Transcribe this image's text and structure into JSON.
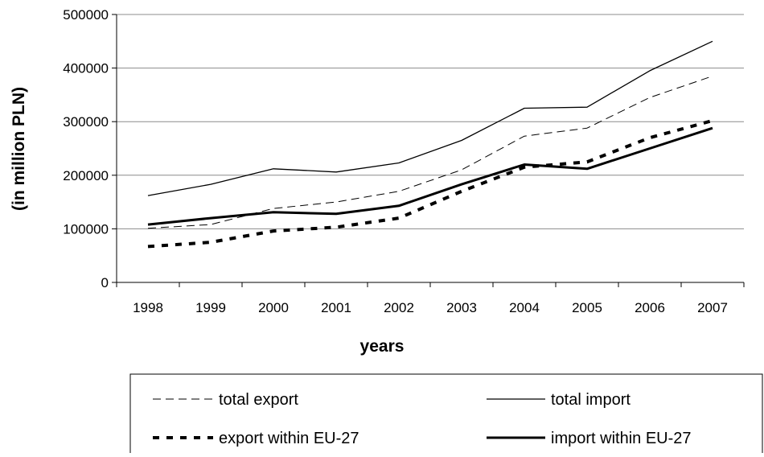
{
  "chart_data": {
    "type": "line",
    "xlabel": "years",
    "ylabel": "(in million PLN)",
    "x": [
      "1998",
      "1999",
      "2000",
      "2001",
      "2002",
      "2003",
      "2004",
      "2005",
      "2006",
      "2007"
    ],
    "ylim": [
      0,
      500000
    ],
    "yticks": [
      "0",
      "100000",
      "200000",
      "300000",
      "400000",
      "500000"
    ],
    "grid": "horizontal",
    "legend_position": "bottom",
    "series": [
      {
        "name": "total export",
        "style": "thin-dashed",
        "color": "#000000",
        "values": [
          101000,
          108000,
          138000,
          150000,
          170000,
          210000,
          273000,
          288000,
          345000,
          385000
        ]
      },
      {
        "name": "total import",
        "style": "thin-solid",
        "color": "#000000",
        "values": [
          162000,
          183000,
          212000,
          206000,
          223000,
          265000,
          325000,
          327000,
          395000,
          450000
        ]
      },
      {
        "name": "export within EU-27",
        "style": "thick-dashed",
        "color": "#000000",
        "values": [
          67000,
          75000,
          96000,
          103000,
          120000,
          170000,
          215000,
          225000,
          270000,
          302000
        ]
      },
      {
        "name": "import within EU-27",
        "style": "thick-solid",
        "color": "#000000",
        "values": [
          108000,
          120000,
          131000,
          128000,
          143000,
          183000,
          220000,
          212000,
          250000,
          288000
        ]
      }
    ]
  }
}
